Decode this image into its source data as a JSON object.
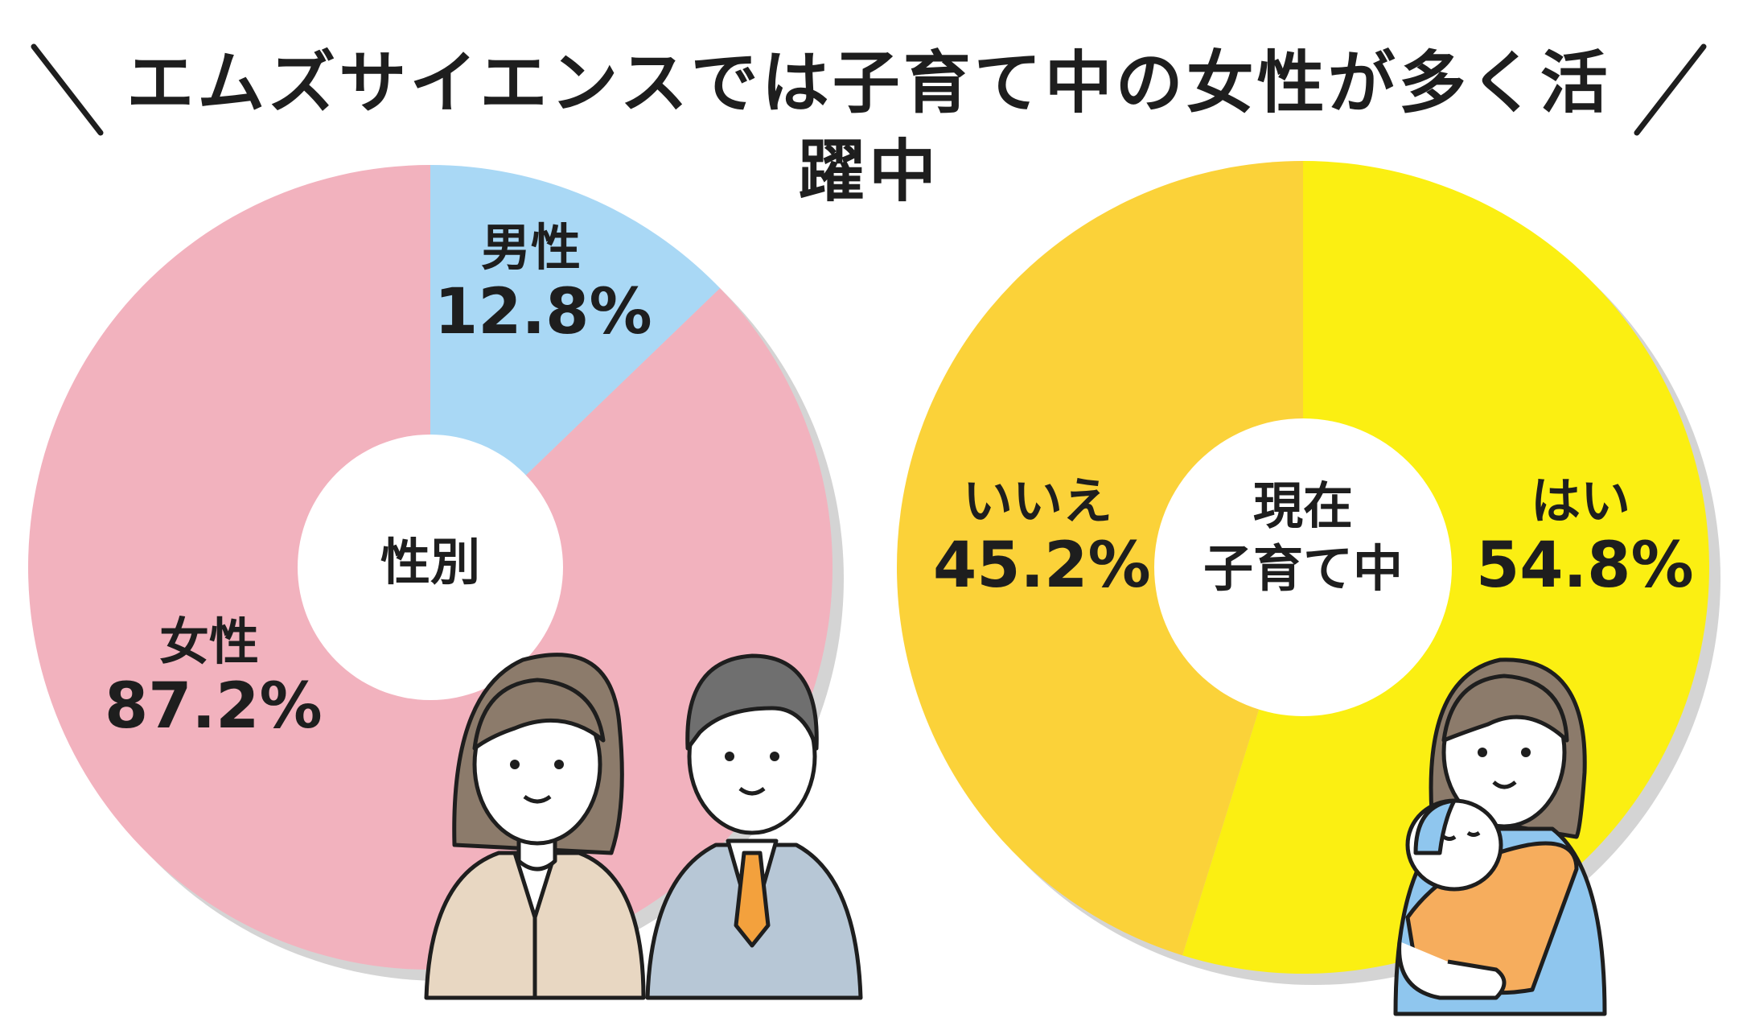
{
  "title": "エムズサイエンスでは子育て中の女性が多く活躍中",
  "colors": {
    "female": "#f2b2be",
    "male": "#a9d8f5",
    "yes": "#fbef12",
    "no": "#fbd239",
    "shadow": "#d4d4d4",
    "text": "#1e1e1e"
  },
  "chart_data": [
    {
      "type": "pie",
      "center_label": "性別",
      "slices": [
        {
          "label": "男性",
          "value": 12.8,
          "value_text": "12.8%",
          "color": "#a9d8f5"
        },
        {
          "label": "女性",
          "value": 87.2,
          "value_text": "87.2%",
          "color": "#f2b2be"
        }
      ]
    },
    {
      "type": "pie",
      "center_label_lines": [
        "現在",
        "子育て中"
      ],
      "slices": [
        {
          "label": "はい",
          "value": 54.8,
          "value_text": "54.8%",
          "color": "#fbef12"
        },
        {
          "label": "いいえ",
          "value": 45.2,
          "value_text": "45.2%",
          "color": "#fbd239"
        }
      ]
    }
  ]
}
